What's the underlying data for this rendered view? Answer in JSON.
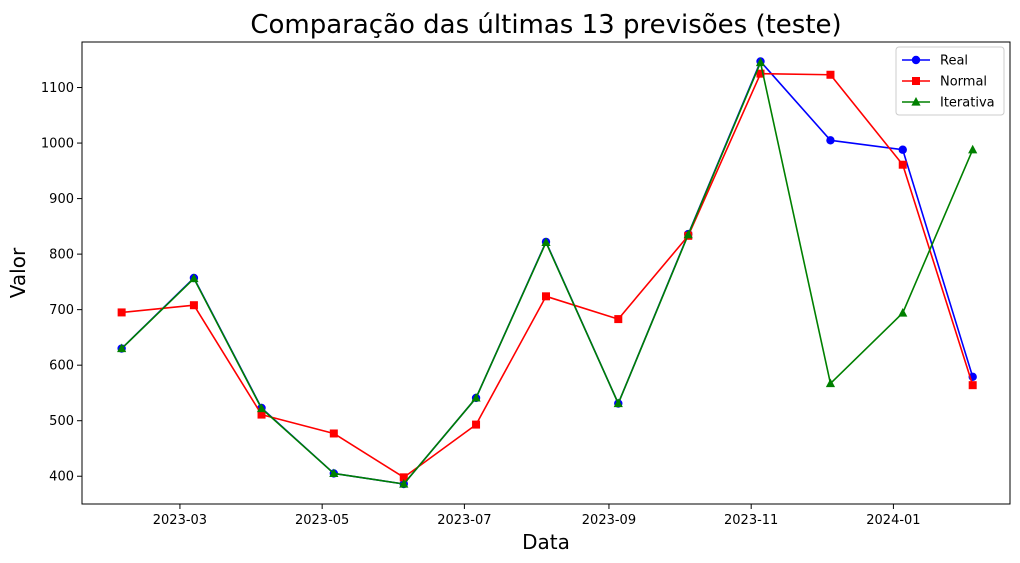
{
  "chart_data": {
    "type": "line",
    "title": "Comparação das últimas 13 previsões (teste)",
    "xlabel": "Data",
    "ylabel": "Valor",
    "x": [
      "2023-02-04",
      "2023-03-07",
      "2023-04-05",
      "2023-05-06",
      "2023-06-05",
      "2023-07-06",
      "2023-08-05",
      "2023-09-05",
      "2023-10-05",
      "2023-11-05",
      "2023-12-05",
      "2024-01-05",
      "2024-02-04"
    ],
    "x_ticks": [
      "2023-03",
      "2023-05",
      "2023-07",
      "2023-09",
      "2023-11",
      "2024-01"
    ],
    "y_ticks": [
      400,
      500,
      600,
      700,
      800,
      900,
      1000,
      1100
    ],
    "xlim": [
      "2023-01-18",
      "2024-02-20"
    ],
    "ylim": [
      350,
      1182
    ],
    "grid": false,
    "legend_position": "top-right",
    "series": [
      {
        "name": "Real",
        "color": "#0000ff",
        "marker": "circle",
        "values": [
          630,
          757,
          523,
          405,
          386,
          541,
          822,
          531,
          836,
          1147,
          1005,
          988,
          579
        ]
      },
      {
        "name": "Normal",
        "color": "#ff0000",
        "marker": "square",
        "values": [
          695,
          708,
          511,
          477,
          398,
          493,
          724,
          683,
          833,
          1125,
          1123,
          961,
          564
        ]
      },
      {
        "name": "Iterativa",
        "color": "#008000",
        "marker": "triangle",
        "values": [
          630,
          756,
          522,
          405,
          386,
          541,
          821,
          531,
          835,
          1145,
          567,
          694,
          988
        ]
      }
    ]
  }
}
